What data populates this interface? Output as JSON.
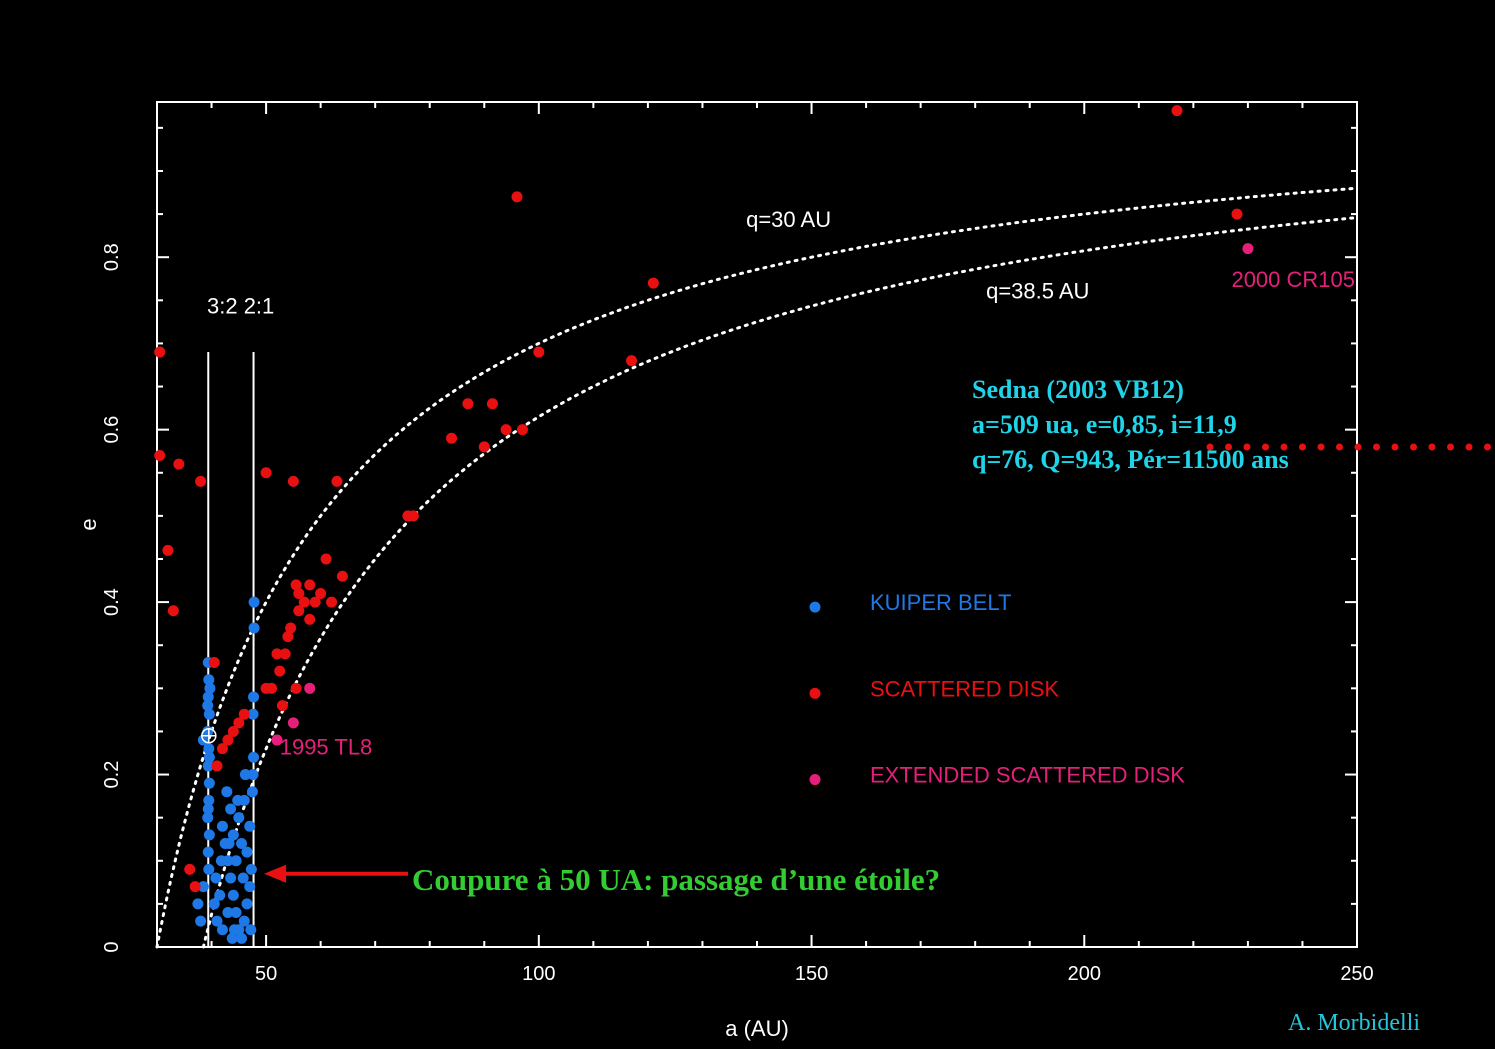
{
  "chart_data": {
    "type": "scatter",
    "xlabel": "a (AU)",
    "ylabel": "e",
    "xlim": [
      30,
      250
    ],
    "ylim": [
      0,
      0.98
    ],
    "xticks": [
      50,
      100,
      150,
      200,
      250
    ],
    "yticks": [
      0,
      0.2,
      0.4,
      0.6,
      0.8
    ],
    "xtick_labels": [
      "50",
      "100",
      "150",
      "200",
      "250"
    ],
    "ytick_labels": [
      "0",
      "0.2",
      "0.4",
      "0.6",
      "0.8"
    ],
    "legend": [
      "KUIPER BELT",
      "SCATTERED DISK",
      "EXTENDED SCATTERED DISK"
    ],
    "legend_position": "right-center",
    "colors": {
      "kuiper": "#1e78e6",
      "scattered": "#e81010",
      "extended": "#e6207a"
    },
    "series": [
      {
        "name": "KUIPER BELT",
        "color": "#1e78e6",
        "points": [
          [
            39.4,
            0.33
          ],
          [
            39.5,
            0.31
          ],
          [
            39.4,
            0.29
          ],
          [
            39.6,
            0.27
          ],
          [
            39.3,
            0.25
          ],
          [
            39.5,
            0.23
          ],
          [
            39.4,
            0.21
          ],
          [
            39.6,
            0.19
          ],
          [
            39.5,
            0.17
          ],
          [
            39.3,
            0.15
          ],
          [
            39.6,
            0.13
          ],
          [
            39.4,
            0.11
          ],
          [
            39.5,
            0.09
          ],
          [
            39.3,
            0.28
          ],
          [
            39.6,
            0.22
          ],
          [
            39.4,
            0.16
          ],
          [
            38.5,
            0.24
          ],
          [
            39.7,
            0.3
          ],
          [
            47.8,
            0.4
          ],
          [
            47.8,
            0.37
          ],
          [
            47.7,
            0.29
          ],
          [
            47.6,
            0.27
          ],
          [
            47.7,
            0.22
          ],
          [
            47.6,
            0.2
          ],
          [
            47.5,
            0.18
          ],
          [
            42.0,
            0.14
          ],
          [
            42.5,
            0.12
          ],
          [
            43.0,
            0.1
          ],
          [
            43.5,
            0.08
          ],
          [
            44.0,
            0.06
          ],
          [
            44.5,
            0.04
          ],
          [
            45.0,
            0.02
          ],
          [
            45.5,
            0.01
          ],
          [
            46.0,
            0.03
          ],
          [
            46.5,
            0.05
          ],
          [
            47.0,
            0.07
          ],
          [
            41.5,
            0.06
          ],
          [
            42.0,
            0.02
          ],
          [
            43.0,
            0.04
          ],
          [
            44.0,
            0.13
          ],
          [
            45.0,
            0.15
          ],
          [
            46.0,
            0.17
          ],
          [
            47.0,
            0.14
          ],
          [
            44.5,
            0.1
          ],
          [
            43.5,
            0.16
          ],
          [
            42.8,
            0.18
          ],
          [
            45.5,
            0.12
          ],
          [
            46.5,
            0.11
          ],
          [
            47.3,
            0.09
          ],
          [
            41.8,
            0.1
          ],
          [
            40.5,
            0.05
          ],
          [
            41.0,
            0.03
          ],
          [
            44.2,
            0.02
          ],
          [
            45.8,
            0.08
          ],
          [
            43.2,
            0.12
          ],
          [
            44.8,
            0.17
          ],
          [
            46.2,
            0.2
          ],
          [
            47.2,
            0.02
          ],
          [
            40.8,
            0.08
          ],
          [
            43.8,
            0.01
          ],
          [
            38.0,
            0.03
          ],
          [
            37.5,
            0.05
          ],
          [
            38.5,
            0.07
          ]
        ]
      },
      {
        "name": "SCATTERED DISK",
        "color": "#e81010",
        "points": [
          [
            30.5,
            0.69
          ],
          [
            30.5,
            0.57
          ],
          [
            32.0,
            0.46
          ],
          [
            33.0,
            0.39
          ],
          [
            34.0,
            0.56
          ],
          [
            38.0,
            0.54
          ],
          [
            36.0,
            0.09
          ],
          [
            37.0,
            0.07
          ],
          [
            40.5,
            0.33
          ],
          [
            41.0,
            0.21
          ],
          [
            42.0,
            0.23
          ],
          [
            43.0,
            0.24
          ],
          [
            44.0,
            0.25
          ],
          [
            45.0,
            0.26
          ],
          [
            46.0,
            0.27
          ],
          [
            50.0,
            0.3
          ],
          [
            50.0,
            0.55
          ],
          [
            51.0,
            0.3
          ],
          [
            52.0,
            0.34
          ],
          [
            52.5,
            0.32
          ],
          [
            53.0,
            0.28
          ],
          [
            53.5,
            0.34
          ],
          [
            54.0,
            0.36
          ],
          [
            54.5,
            0.37
          ],
          [
            55.0,
            0.54
          ],
          [
            55.5,
            0.3
          ],
          [
            55.5,
            0.42
          ],
          [
            56.0,
            0.41
          ],
          [
            56.0,
            0.39
          ],
          [
            57.0,
            0.4
          ],
          [
            58.0,
            0.42
          ],
          [
            59.0,
            0.4
          ],
          [
            60.0,
            0.41
          ],
          [
            61.0,
            0.45
          ],
          [
            62.0,
            0.4
          ],
          [
            63.0,
            0.54
          ],
          [
            64.0,
            0.43
          ],
          [
            76.0,
            0.5
          ],
          [
            77.0,
            0.5
          ],
          [
            84.0,
            0.59
          ],
          [
            87.0,
            0.63
          ],
          [
            90.0,
            0.58
          ],
          [
            91.5,
            0.63
          ],
          [
            94.0,
            0.6
          ],
          [
            96.0,
            0.87
          ],
          [
            97.0,
            0.6
          ],
          [
            100.0,
            0.69
          ],
          [
            117.0,
            0.68
          ],
          [
            121.0,
            0.77
          ],
          [
            217.0,
            0.97
          ],
          [
            228.0,
            0.85
          ],
          [
            58.0,
            0.38
          ]
        ]
      },
      {
        "name": "EXTENDED SCATTERED DISK",
        "color": "#e6207a",
        "points": [
          [
            52.0,
            0.24
          ],
          [
            55.0,
            0.26
          ],
          [
            58.0,
            0.3
          ],
          [
            230.0,
            0.81
          ]
        ]
      }
    ],
    "curves": [
      {
        "label": "q=30 AU",
        "q": 30
      },
      {
        "label": "q=38.5 AU",
        "q": 38.5
      }
    ],
    "resonances": [
      {
        "label": "3:2",
        "a": 39.4,
        "e_max": 0.69
      },
      {
        "label": "2:1",
        "a": 47.7,
        "e_max": 0.69
      }
    ],
    "resonance_label": "3:2 2:1",
    "annotations": [
      {
        "text": "1995 TL8",
        "x": 52.0,
        "y": 0.235
      },
      {
        "text": "2000 CR105",
        "x": 230.0,
        "y": 0.81
      }
    ],
    "highlight_point": {
      "x": 39.5,
      "y": 0.245
    },
    "arrow_target": {
      "x": 50,
      "y": 0.085
    }
  },
  "sedna": {
    "line1": "Sedna (2003 VB12)",
    "line2": "a=509 ua, e=0,85, i=11,9",
    "line3": "q=76, Q=943, Pér=11500 ans"
  },
  "callout": "Coupure à 50 UA: passage d’une étoile?",
  "credit": "A. Morbidelli"
}
